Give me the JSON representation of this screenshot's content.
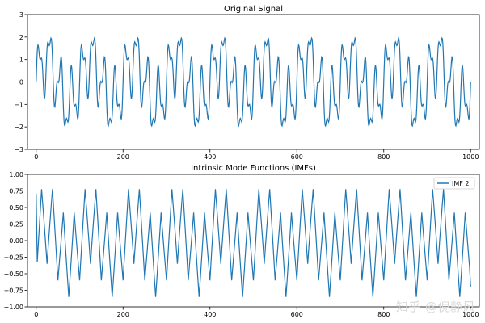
{
  "watermark": "知乎 @倪静风",
  "colors": {
    "line": "#1f77b4",
    "axis": "#000000",
    "legend_border": "#cccccc"
  },
  "chart_data": [
    {
      "type": "line",
      "title": "Original Signal",
      "xlabel": "",
      "ylabel": "",
      "xlim": [
        -20,
        1020
      ],
      "ylim": [
        -3,
        3
      ],
      "xticks": [
        0,
        200,
        400,
        600,
        800,
        1000
      ],
      "yticks": [
        -3,
        -2,
        -1,
        0,
        1,
        2,
        3
      ],
      "grid": false,
      "legend": null,
      "series": [
        {
          "x": [
            0,
            1000
          ],
          "components": [
            {
              "shape": "sin",
              "amplitude": 1.0,
              "cycles": 10
            },
            {
              "shape": "sin",
              "amplitude": 1.2,
              "cycles": 40
            },
            {
              "shape": "sin",
              "amplitude": 0.5,
              "cycles": 90
            }
          ],
          "sample_points": 1001
        }
      ]
    },
    {
      "type": "line",
      "title": "Intrinsic Mode Functions (IMFs)",
      "xlabel": "",
      "ylabel": "",
      "xlim": [
        -20,
        1020
      ],
      "ylim": [
        -1.0,
        1.0
      ],
      "xticks": [
        0,
        200,
        400,
        600,
        800,
        1000
      ],
      "yticks": [
        -1.0,
        -0.75,
        -0.5,
        -0.25,
        0.0,
        0.25,
        0.5,
        0.75,
        1.0
      ],
      "ytick_labels": [
        "−1.00",
        "−0.75",
        "−0.50",
        "−0.25",
        "0.00",
        "0.25",
        "0.50",
        "0.75",
        "1.00"
      ],
      "grid": false,
      "legend": {
        "position": "top-right",
        "entries": [
          "IMF 2"
        ]
      },
      "series": [
        {
          "name": "IMF 2",
          "x": [
            0,
            1000
          ],
          "components": [
            {
              "shape": "triangle",
              "amplitude": 0.6,
              "cycles": 40
            },
            {
              "shape": "sin",
              "amplitude": 0.25,
              "cycles": 10
            }
          ],
          "sample_points": 401,
          "start_value": 0.71,
          "end_value": -0.7
        }
      ]
    }
  ]
}
